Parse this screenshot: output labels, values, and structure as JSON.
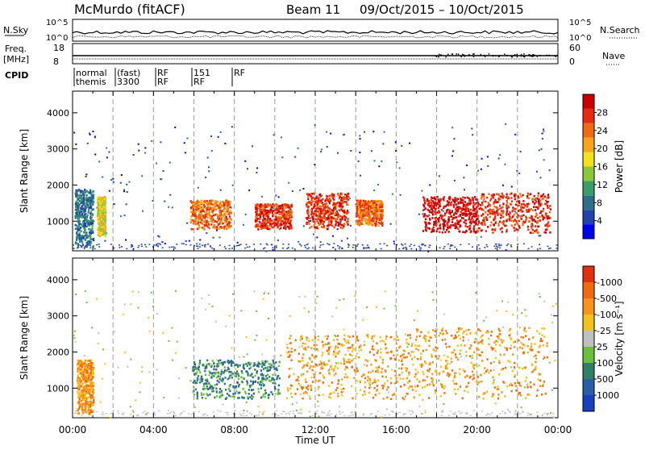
{
  "header": {
    "title": "McMurdo (fitACF)",
    "beam": "Beam 11",
    "date_range": "09/Oct/2015 – 10/Oct/2015"
  },
  "strip_labels": {
    "nsky": "N.Sky",
    "nsky_ticks": [
      "10^5",
      "10^0"
    ],
    "nsearch": "N.Search",
    "nsearch_ticks": [
      "10^5",
      "10^0"
    ],
    "freq": "Freq.",
    "freq_unit": "[MHz]",
    "freq_ticks": [
      "18",
      "8"
    ],
    "nave": "Nave",
    "nave_ticks": [
      "60",
      "0"
    ],
    "cpid": "CPID",
    "cpid_segments": [
      {
        "line1": "normal",
        "line2": "themis"
      },
      {
        "line1": "(fast)",
        "line2": "3300"
      },
      {
        "line1": "RF",
        "line2": "RF"
      },
      {
        "line1": "151",
        "line2": "RF"
      },
      {
        "line1": "RF",
        "line2": ""
      }
    ]
  },
  "chart_data": [
    {
      "type": "heatmap",
      "name": "power-panel",
      "ylabel": "Slant Range [km]",
      "y_ticks": [
        1000,
        2000,
        3000,
        4000
      ],
      "ylim": [
        180,
        4600
      ],
      "x_ticks": [
        "00:00",
        "04:00",
        "08:00",
        "12:00",
        "16:00",
        "20:00",
        "00:00"
      ],
      "xlim_hours": [
        0,
        24
      ],
      "colorbar": {
        "label": "Power [dB]",
        "ticks": [
          "4",
          "8",
          "12",
          "16",
          "20",
          "24",
          "28"
        ],
        "colors": [
          "#0000ee",
          "#2244aa",
          "#2e6e8a",
          "#3a9d6a",
          "#8cc63f",
          "#f3e21b",
          "#f7a51d",
          "#f06a10",
          "#e82a0f",
          "#cc0000"
        ]
      },
      "echo_regions": [
        {
          "t0": 0.1,
          "t1": 1.0,
          "r0": 300,
          "r1": 1900,
          "level": 2
        },
        {
          "t0": 1.2,
          "t1": 1.6,
          "r0": 600,
          "r1": 1700,
          "level": 5
        },
        {
          "t0": 5.8,
          "t1": 7.8,
          "r0": 800,
          "r1": 1600,
          "level": 7
        },
        {
          "t0": 9.0,
          "t1": 10.8,
          "r0": 800,
          "r1": 1500,
          "level": 8
        },
        {
          "t0": 11.5,
          "t1": 13.6,
          "r0": 800,
          "r1": 1800,
          "level": 8
        },
        {
          "t0": 14.0,
          "t1": 15.3,
          "r0": 900,
          "r1": 1600,
          "level": 7
        },
        {
          "t0": 17.3,
          "t1": 20.0,
          "r0": 700,
          "r1": 1700,
          "level": 9
        },
        {
          "t0": 20.0,
          "t1": 23.6,
          "r0": 700,
          "r1": 1800,
          "level": 8
        }
      ]
    },
    {
      "type": "heatmap",
      "name": "velocity-panel",
      "ylabel": "Slant Range [km]",
      "xlabel": "Time UT",
      "y_ticks": [
        1000,
        2000,
        3000,
        4000
      ],
      "ylim": [
        180,
        4600
      ],
      "x_ticks": [
        "00:00",
        "04:00",
        "08:00",
        "12:00",
        "16:00",
        "20:00",
        "00:00"
      ],
      "xlim_hours": [
        0,
        24
      ],
      "colorbar": {
        "label": "Velocity [m s⁻¹]",
        "ticks": [
          "1000",
          "500",
          "100",
          "25",
          "-25",
          "-100",
          "-500",
          "-1000"
        ],
        "colors": [
          "#1a3fbf",
          "#2a5fa8",
          "#2f8068",
          "#6cbf3c",
          "#c0c0c0",
          "#f3c21b",
          "#f7941d",
          "#f06a10",
          "#e03010"
        ]
      },
      "echo_regions": [
        {
          "t0": 0.2,
          "t1": 1.0,
          "r0": 300,
          "r1": 1800,
          "level": 6
        },
        {
          "t0": 5.9,
          "t1": 10.2,
          "r0": 700,
          "r1": 1800,
          "level": 2
        },
        {
          "t0": 10.5,
          "t1": 16.8,
          "r0": 700,
          "r1": 2500,
          "level": 6
        },
        {
          "t0": 16.8,
          "t1": 23.5,
          "r0": 700,
          "r1": 2700,
          "level": 6
        }
      ]
    }
  ]
}
